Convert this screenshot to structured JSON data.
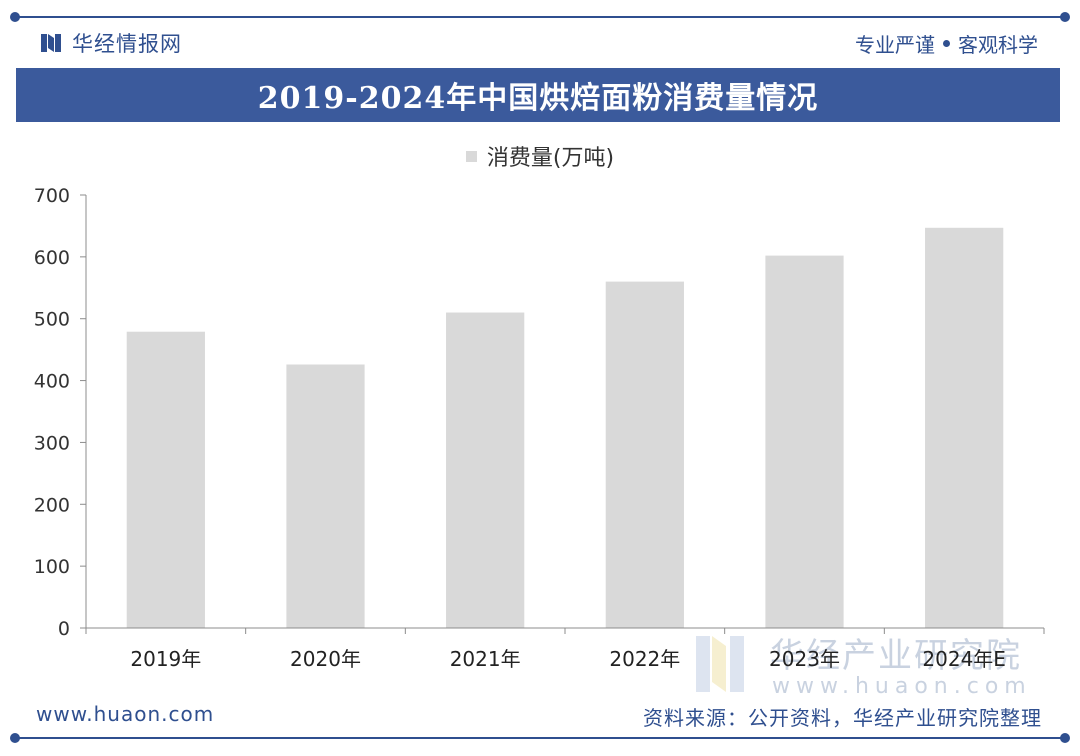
{
  "header": {
    "brand": "华经情报网",
    "slogan_left": "专业严谨",
    "slogan_right": "客观科学"
  },
  "title": "2019-2024年中国烘焙面粉消费量情况",
  "legend_label": "消费量(万吨)",
  "footer": {
    "website": "www.huaon.com",
    "source": "资料来源：公开资料，华经产业研究院整理"
  },
  "watermark": {
    "name": "华经产业研究院",
    "url": "www.huaon.com"
  },
  "colors": {
    "brand_blue": "#2f4f8f",
    "title_bar": "#3b5a9c",
    "bar_fill": "#d9d9d9"
  },
  "chart_data": {
    "type": "bar",
    "title": "2019-2024年中国烘焙面粉消费量情况",
    "categories": [
      "2019年",
      "2020年",
      "2021年",
      "2022年",
      "2023年",
      "2024年E"
    ],
    "series": [
      {
        "name": "消费量(万吨)",
        "values": [
          479,
          426,
          510,
          560,
          602,
          647
        ]
      }
    ],
    "yticks": [
      0,
      100,
      200,
      300,
      400,
      500,
      600,
      700
    ],
    "ylim": [
      0,
      700
    ],
    "grid": false,
    "legend_position": "top-center"
  }
}
